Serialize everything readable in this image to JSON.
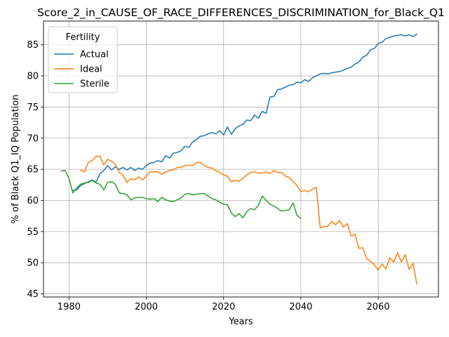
{
  "chart_data": {
    "type": "line",
    "title": "Score_2_in_CAUSE_OF_RACE_DIFFERENCES_DISCRIMINATION_for_Black_Q1",
    "xlabel": "Years",
    "ylabel": "% of Black Q1_IQ Population",
    "xlim": [
      1973.4,
      2075.6
    ],
    "ylim": [
      44.5,
      88.8
    ],
    "xticks": [
      1980,
      2000,
      2020,
      2040,
      2060
    ],
    "yticks": [
      45,
      50,
      55,
      60,
      65,
      70,
      75,
      80,
      85
    ],
    "grid": true,
    "legend": {
      "title": "Fertility",
      "placement": "top-left"
    },
    "series": [
      {
        "name": "Actual",
        "color": "#1f77b4",
        "x": [
          1981,
          1982,
          1983,
          1984,
          1985,
          1986,
          1987,
          1988,
          1989,
          1990,
          1991,
          1992,
          1993,
          1994,
          1995,
          1996,
          1997,
          1998,
          1999,
          2000,
          2001,
          2002,
          2003,
          2004,
          2005,
          2006,
          2007,
          2008,
          2009,
          2010,
          2011,
          2012,
          2013,
          2014,
          2015,
          2016,
          2017,
          2018,
          2019,
          2020,
          2021,
          2022,
          2023,
          2024,
          2025,
          2026,
          2027,
          2028,
          2029,
          2030,
          2031,
          2032,
          2033,
          2034,
          2035,
          2036,
          2037,
          2038,
          2039,
          2040,
          2041,
          2042,
          2043,
          2044,
          2045,
          2046,
          2047,
          2048,
          2049,
          2050,
          2051,
          2052,
          2053,
          2054,
          2055,
          2056,
          2057,
          2058,
          2059,
          2060,
          2061,
          2062,
          2063,
          2064,
          2065,
          2066,
          2067,
          2068,
          2069,
          2070
        ],
        "y": [
          61.6,
          61.7,
          62.4,
          62.7,
          63.0,
          63.3,
          62.9,
          64.3,
          64.8,
          65.6,
          64.9,
          65.4,
          65.0,
          65.3,
          64.9,
          65.3,
          64.8,
          65.2,
          65.0,
          65.6,
          66.0,
          66.1,
          66.4,
          66.2,
          67.2,
          66.8,
          67.6,
          67.7,
          68.0,
          68.7,
          68.5,
          69.4,
          69.8,
          70.3,
          70.4,
          70.7,
          70.9,
          70.7,
          71.2,
          70.5,
          71.8,
          70.6,
          71.5,
          72.0,
          72.2,
          72.9,
          72.8,
          73.7,
          73.2,
          74.3,
          74.0,
          76.6,
          76.7,
          77.8,
          77.9,
          78.2,
          78.5,
          78.6,
          79.0,
          78.9,
          79.4,
          79.1,
          79.7,
          80.0,
          80.3,
          80.4,
          80.3,
          80.5,
          80.6,
          80.7,
          80.9,
          81.2,
          81.4,
          81.9,
          82.2,
          83.0,
          83.3,
          84.2,
          84.4,
          85.2,
          85.4,
          86.0,
          86.2,
          86.4,
          86.5,
          86.6,
          86.4,
          86.6,
          86.3,
          86.7
        ]
      },
      {
        "name": "Ideal",
        "color": "#ff7f0e",
        "x": [
          1983,
          1984,
          1985,
          1986,
          1987,
          1988,
          1989,
          1990,
          1991,
          1992,
          1993,
          1994,
          1995,
          1996,
          1997,
          1998,
          1999,
          2000,
          2001,
          2002,
          2003,
          2004,
          2005,
          2006,
          2007,
          2008,
          2009,
          2010,
          2011,
          2012,
          2013,
          2014,
          2015,
          2016,
          2017,
          2018,
          2019,
          2020,
          2021,
          2022,
          2023,
          2024,
          2025,
          2026,
          2027,
          2028,
          2029,
          2030,
          2031,
          2032,
          2033,
          2034,
          2035,
          2036,
          2037,
          2038,
          2039,
          2040,
          2041,
          2042,
          2043,
          2044,
          2045,
          2046,
          2047,
          2048,
          2049,
          2050,
          2051,
          2052,
          2053,
          2054,
          2055,
          2056,
          2057,
          2058,
          2059,
          2060,
          2061,
          2062,
          2063,
          2064,
          2065,
          2066,
          2067,
          2068,
          2069,
          2070
        ],
        "y": [
          64.9,
          64.6,
          66.1,
          66.4,
          67.1,
          67.1,
          65.7,
          66.6,
          66.3,
          65.8,
          64.5,
          64.0,
          62.9,
          63.5,
          63.3,
          63.8,
          63.3,
          63.9,
          64.6,
          64.6,
          64.6,
          64.2,
          64.6,
          64.8,
          64.9,
          65.3,
          65.3,
          65.6,
          65.7,
          65.6,
          66.1,
          66.1,
          65.6,
          65.3,
          65.2,
          64.8,
          64.5,
          64.1,
          63.9,
          63.0,
          63.2,
          63.1,
          63.6,
          64.1,
          64.5,
          64.6,
          64.4,
          64.4,
          64.6,
          64.3,
          64.8,
          64.5,
          64.5,
          63.9,
          63.7,
          63.0,
          62.4,
          61.4,
          61.6,
          61.4,
          61.8,
          62.1,
          55.6,
          55.8,
          55.9,
          56.6,
          56.1,
          56.8,
          55.7,
          56.3,
          54.3,
          54.6,
          52.3,
          52.4,
          50.7,
          50.2,
          49.7,
          48.8,
          49.8,
          49.0,
          50.8,
          50.1,
          51.6,
          50.1,
          51.3,
          48.9,
          49.9,
          46.6
        ]
      },
      {
        "name": "Sterile",
        "color": "#2ca02c",
        "x": [
          1978,
          1979,
          1980,
          1981,
          1982,
          1983,
          1984,
          1985,
          1986,
          1987,
          1988,
          1989,
          1990,
          1991,
          1992,
          1993,
          1994,
          1995,
          1996,
          1997,
          1998,
          1999,
          2000,
          2001,
          2002,
          2003,
          2004,
          2005,
          2006,
          2007,
          2008,
          2009,
          2010,
          2011,
          2012,
          2013,
          2014,
          2015,
          2016,
          2017,
          2018,
          2019,
          2020,
          2021,
          2022,
          2023,
          2024,
          2025,
          2026,
          2027,
          2028,
          2029,
          2030,
          2031,
          2032,
          2033,
          2034,
          2035,
          2036,
          2037,
          2038,
          2039,
          2040
        ],
        "y": [
          64.7,
          64.8,
          63.5,
          61.2,
          62.0,
          62.6,
          62.8,
          62.9,
          63.2,
          62.8,
          62.6,
          61.7,
          62.9,
          63.0,
          62.6,
          61.2,
          61.1,
          60.9,
          60.1,
          60.4,
          60.5,
          60.5,
          60.3,
          60.2,
          60.3,
          59.8,
          60.5,
          60.1,
          59.9,
          59.8,
          60.1,
          60.4,
          61.0,
          61.1,
          60.9,
          61.0,
          61.1,
          61.1,
          60.7,
          60.3,
          60.1,
          59.7,
          59.4,
          59.3,
          58.0,
          57.4,
          57.9,
          57.2,
          58.2,
          58.7,
          58.5,
          59.2,
          60.7,
          60.0,
          59.4,
          59.1,
          58.7,
          58.3,
          58.4,
          58.5,
          59.6,
          57.6,
          57.1
        ]
      }
    ]
  }
}
